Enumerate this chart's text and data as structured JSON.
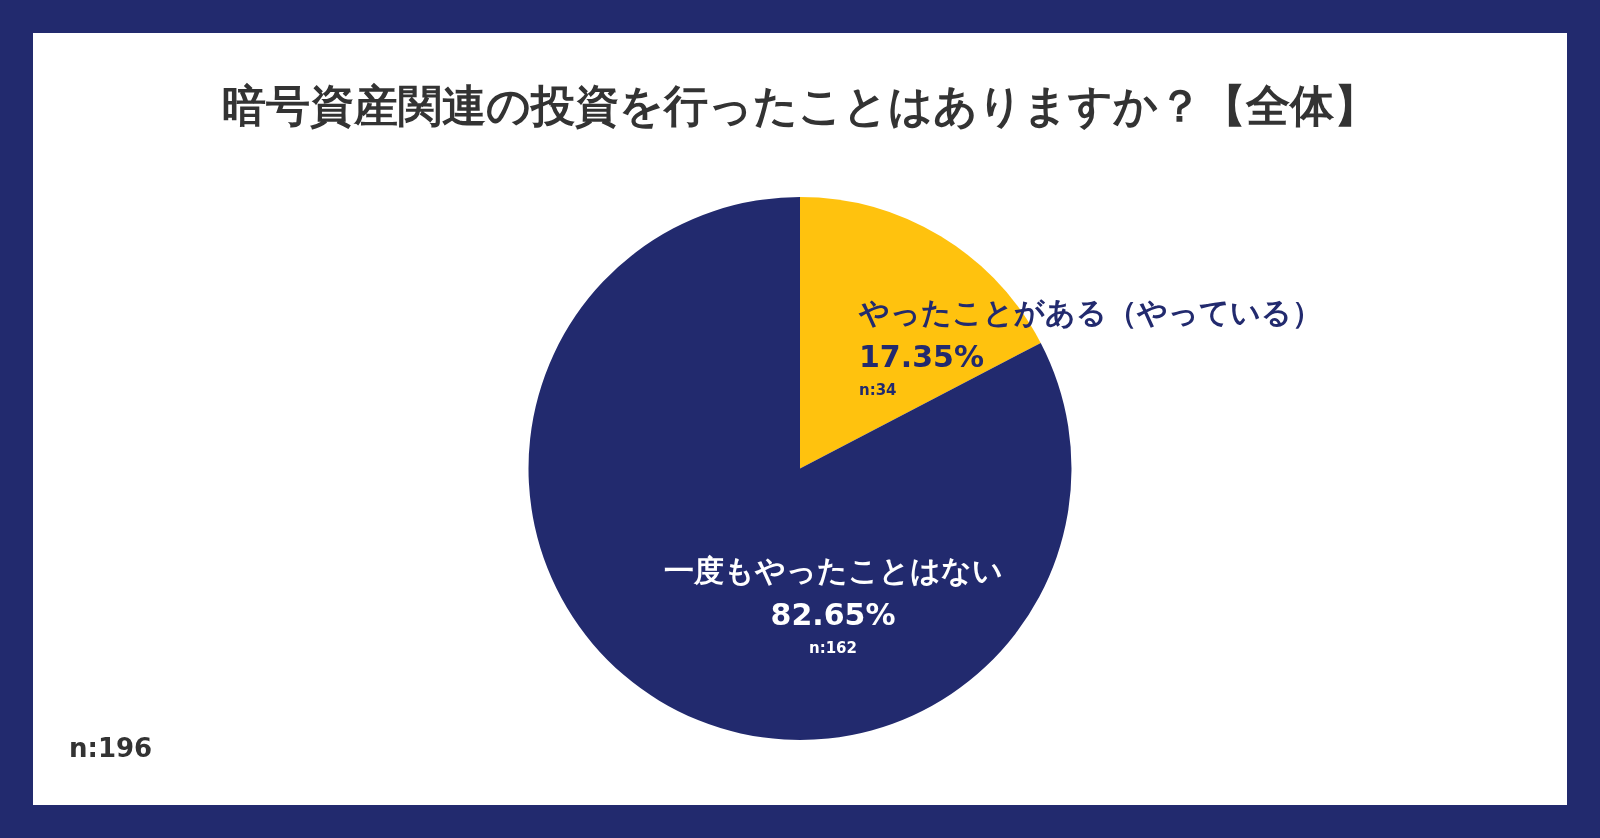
{
  "chart_data": {
    "type": "pie",
    "title": "暗号資産関連の投資を行ったことはありますか？【全体】",
    "categories": [
      "やったことがある（やっている）",
      "一度もやったことはない"
    ],
    "values": [
      17.35,
      82.65
    ],
    "colors": [
      "#ffc20e",
      "#222a6e"
    ],
    "value_labels": [
      "17.35%",
      "82.65%"
    ],
    "annotations": [
      {
        "text": "n:34",
        "x": "やったことがある（やっている）"
      },
      {
        "text": "n:162",
        "x": "一度もやったことはない"
      },
      "n:196"
    ],
    "legend": false
  }
}
